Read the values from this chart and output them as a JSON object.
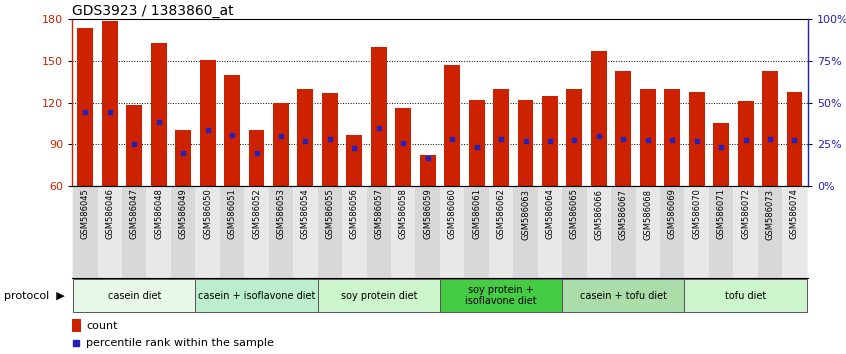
{
  "title": "GDS3923 / 1383860_at",
  "samples": [
    "GSM586045",
    "GSM586046",
    "GSM586047",
    "GSM586048",
    "GSM586049",
    "GSM586050",
    "GSM586051",
    "GSM586052",
    "GSM586053",
    "GSM586054",
    "GSM586055",
    "GSM586056",
    "GSM586057",
    "GSM586058",
    "GSM586059",
    "GSM586060",
    "GSM586061",
    "GSM586062",
    "GSM586063",
    "GSM586064",
    "GSM586065",
    "GSM586066",
    "GSM586067",
    "GSM586068",
    "GSM586069",
    "GSM586070",
    "GSM586071",
    "GSM586072",
    "GSM586073",
    "GSM586074"
  ],
  "counts": [
    174,
    179,
    118,
    163,
    100,
    151,
    140,
    100,
    120,
    130,
    127,
    97,
    160,
    116,
    82,
    147,
    122,
    130,
    122,
    125,
    130,
    157,
    143,
    130,
    130,
    128,
    105,
    121,
    143,
    128
  ],
  "prank_y": [
    113,
    113,
    90,
    106,
    84,
    100,
    97,
    84,
    96,
    92,
    94,
    87,
    102,
    91,
    80,
    94,
    88,
    94,
    92,
    92,
    93,
    96,
    94,
    93,
    93,
    92,
    88,
    93,
    94,
    93
  ],
  "protocol_groups": [
    {
      "label": "casein diet",
      "start": 0,
      "end": 5,
      "color": "#e8f8e8"
    },
    {
      "label": "casein + isoflavone diet",
      "start": 5,
      "end": 10,
      "color": "#bbeecc"
    },
    {
      "label": "soy protein diet",
      "start": 10,
      "end": 15,
      "color": "#ccf5cc"
    },
    {
      "label": "soy protein +\nisoflavone diet",
      "start": 15,
      "end": 20,
      "color": "#44cc44"
    },
    {
      "label": "casein + tofu diet",
      "start": 20,
      "end": 25,
      "color": "#aaddaa"
    },
    {
      "label": "tofu diet",
      "start": 25,
      "end": 30,
      "color": "#ccf5cc"
    }
  ],
  "ymin": 60,
  "ymax": 180,
  "yticks_left": [
    60,
    90,
    120,
    150,
    180
  ],
  "yticks_right_pct": [
    0,
    25,
    50,
    75,
    100
  ],
  "bar_color": "#cc2200",
  "dot_color": "#2222bb",
  "bar_width": 0.65,
  "bg_color": "#ffffff",
  "grid_lines": [
    90,
    120,
    150
  ],
  "title_fontsize": 10,
  "tick_fontsize": 8,
  "label_fontsize": 6,
  "group_fontsize": 7,
  "legend_fontsize": 8
}
